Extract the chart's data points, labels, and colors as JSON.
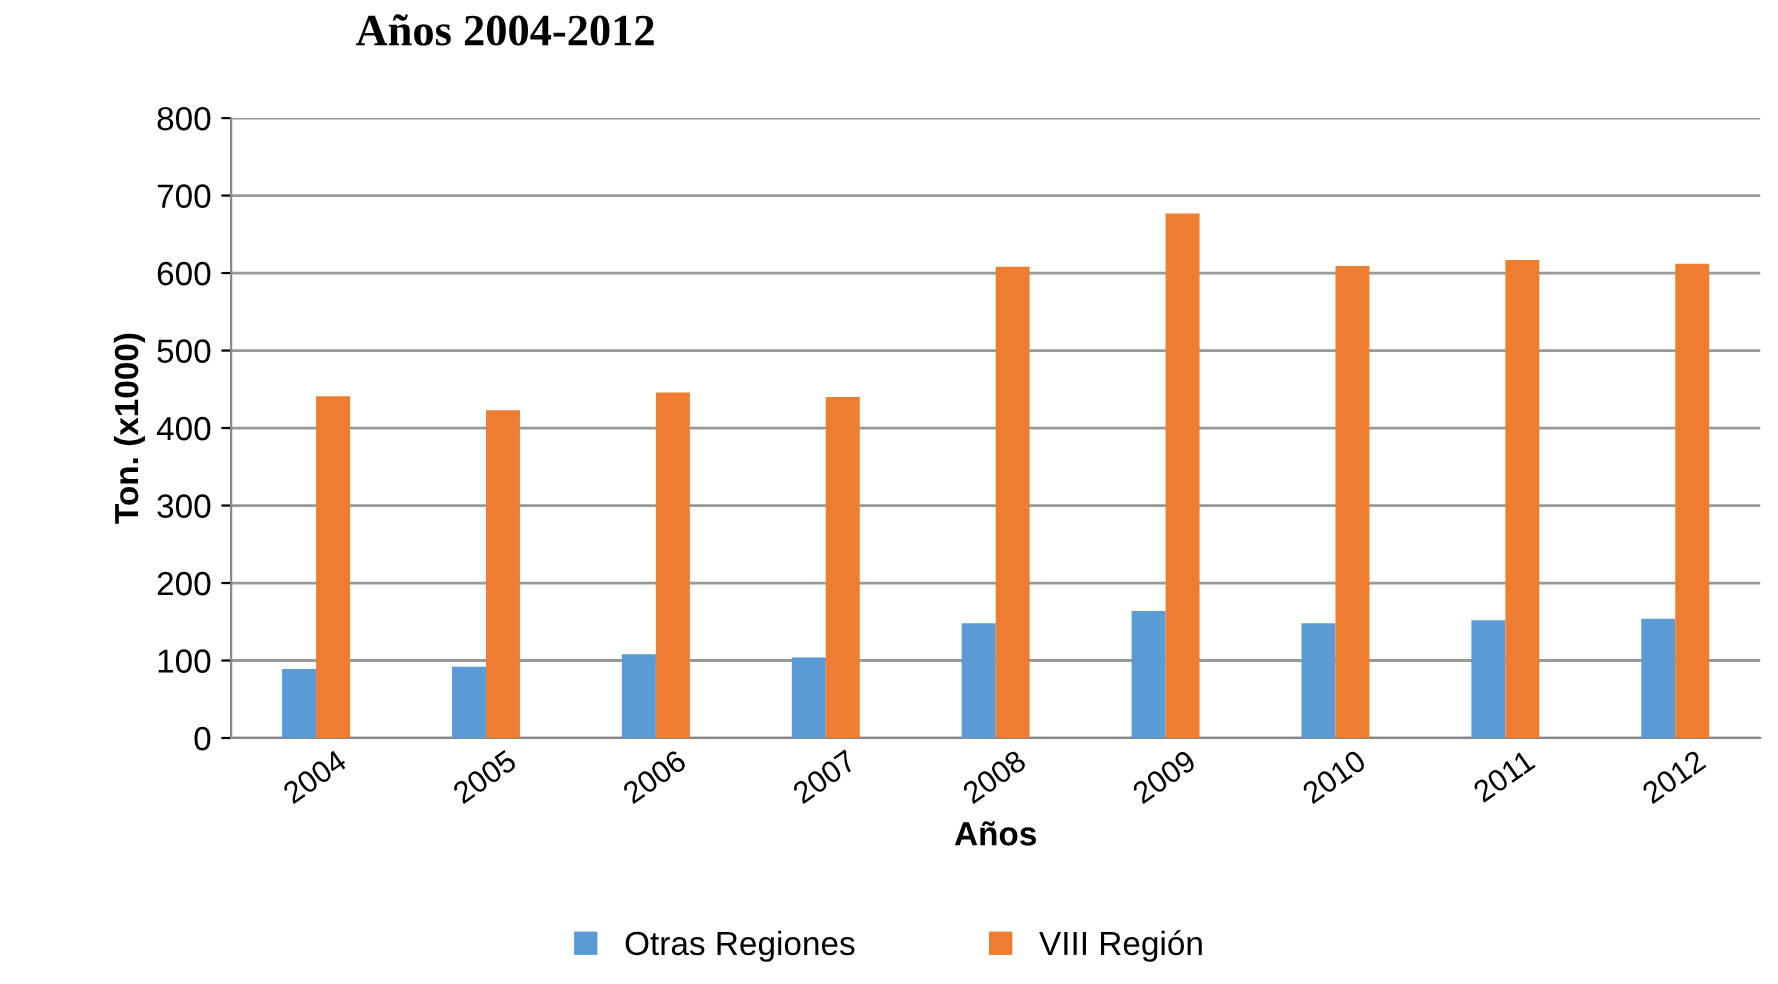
{
  "chart_data": {
    "type": "bar",
    "title": "Años 2004-2012",
    "xlabel": "Años",
    "ylabel": "Ton. (x1000)",
    "categories": [
      "2004",
      "2005",
      "2006",
      "2007",
      "2008",
      "2009",
      "2010",
      "2011",
      "2012"
    ],
    "series": [
      {
        "name": "Otras Regiones",
        "color": "#5b9bd5",
        "values": [
          89,
          92,
          108,
          104,
          148,
          164,
          148,
          152,
          154
        ]
      },
      {
        "name": "VIII Región",
        "color": "#ed7d31",
        "values": [
          441,
          423,
          446,
          440,
          608,
          677,
          609,
          617,
          612
        ]
      }
    ],
    "ylim": [
      0,
      800
    ],
    "yticks": [
      0,
      100,
      200,
      300,
      400,
      500,
      600,
      700,
      800
    ],
    "grid": "y",
    "legend": "bottom"
  }
}
